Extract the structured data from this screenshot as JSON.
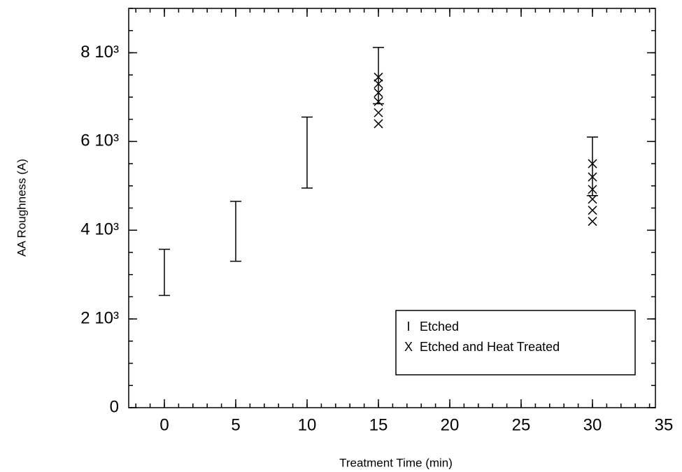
{
  "chart_data": {
    "type": "errorbar-scatter",
    "x_label": "Treatment Time (min)",
    "y_label": "AA Roughness (A)",
    "xlim": [
      -2.5,
      35
    ],
    "xticks": [
      0,
      5,
      10,
      15,
      20,
      25,
      30,
      35
    ],
    "x_minor_step": 1,
    "ylim": [
      0,
      9000
    ],
    "yticks": [
      0,
      {
        "value": 2000,
        "label": "2 10³"
      },
      {
        "value": 4000,
        "label": "4 10³"
      },
      {
        "value": 6000,
        "label": "6 10³"
      },
      {
        "value": 8000,
        "label": "8 10³"
      }
    ],
    "y_minor_step": 500,
    "legend": "lower right",
    "color": "#000000",
    "series": [
      {
        "name": "Etched",
        "marker": "I",
        "x": [
          0,
          5,
          10,
          15,
          30
        ],
        "low": [
          2530,
          3300,
          4950,
          6850,
          4780
        ],
        "high": [
          3570,
          4650,
          6550,
          8120,
          6100
        ]
      },
      {
        "name": "Etched and Heat Treated",
        "marker": "X",
        "x": [
          15,
          15,
          15,
          15,
          15,
          15,
          30,
          30,
          30,
          30,
          30,
          30
        ],
        "values": [
          7450,
          7300,
          7100,
          6900,
          6650,
          6400,
          5500,
          5200,
          4920,
          4700,
          4450,
          4200
        ]
      }
    ]
  }
}
